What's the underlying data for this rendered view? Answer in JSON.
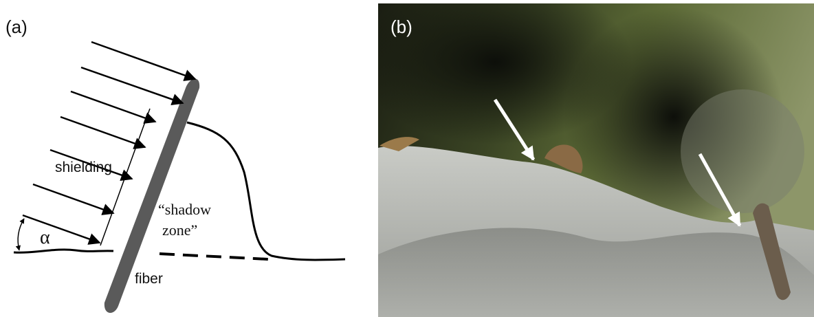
{
  "panels": {
    "a": {
      "label": "(a)",
      "shielding": "shielding",
      "shadow_zone": [
        "“shadow",
        "zone”"
      ],
      "fiber": "fiber",
      "angle": "α"
    },
    "b": {
      "label": "(b)"
    }
  }
}
